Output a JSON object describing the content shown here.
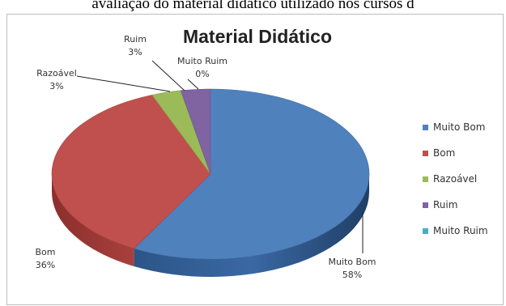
{
  "page": {
    "caption": "avaliação do material didático utilizado nos cursos d"
  },
  "chart_data": {
    "type": "pie",
    "title": "Material Didático",
    "categories": [
      "Muito Bom",
      "Bom",
      "Razoável",
      "Ruim",
      "Muito Ruim"
    ],
    "values": [
      58,
      36,
      3,
      3,
      0
    ],
    "percent_labels": [
      "58%",
      "36%",
      "3%",
      "3%",
      "0%"
    ],
    "colors": [
      "#4f81bd",
      "#c0504d",
      "#9bbb59",
      "#8064a2",
      "#4bacc6"
    ],
    "legend_position": "right",
    "style": "3d"
  }
}
